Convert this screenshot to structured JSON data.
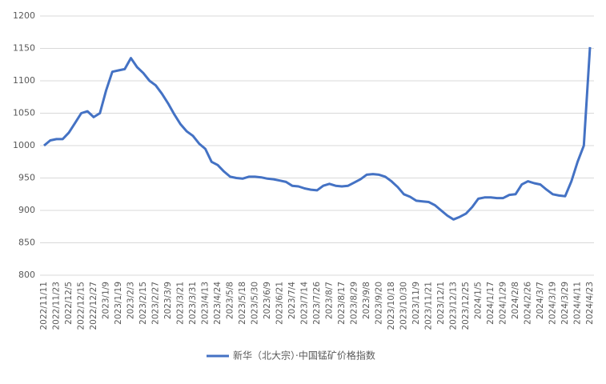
{
  "chart_data": {
    "type": "line",
    "categories": [
      "2022/11/11",
      null,
      "2022/11/23",
      null,
      "2022/12/5",
      null,
      "2022/12/15",
      null,
      "2022/12/27",
      null,
      "2023/1/9",
      null,
      "2023/1/19",
      null,
      "2023/2/3",
      null,
      "2023/2/15",
      null,
      "2023/2/27",
      null,
      "2023/3/9",
      null,
      "2023/3/21",
      null,
      "2023/3/31",
      null,
      "2023/4/13",
      null,
      "2023/4/24",
      null,
      "2023/5/8",
      null,
      "2023/5/18",
      null,
      "2023/5/30",
      null,
      "2023/6/9",
      null,
      "2023/6/21",
      null,
      "2023/7/4",
      null,
      "2023/7/14",
      null,
      "2023/7/26",
      null,
      "2023/8/7",
      null,
      "2023/8/17",
      null,
      "2023/8/29",
      null,
      "2023/9/8",
      null,
      "2023/9/20",
      null,
      "2023/10/18",
      null,
      "2023/10/30",
      null,
      "2023/11/9",
      null,
      "2023/11/21",
      null,
      "2023/12/1",
      null,
      "2023/12/13",
      null,
      "2023/12/25",
      null,
      "2024/1/5",
      null,
      "2024/1/17",
      null,
      "2024/1/29",
      null,
      "2024/2/8",
      null,
      "2024/2/26",
      null,
      "2024/3/7",
      null,
      "2024/3/19",
      null,
      "2024/3/29",
      null,
      "2024/4/11",
      null,
      "2024/4/23"
    ],
    "series": [
      {
        "name": "新华（北大宗）·中国锰矿价格指数",
        "color": "#4472c4",
        "values": [
          1000,
          1008,
          1010,
          1010,
          1020,
          1035,
          1050,
          1053,
          1044,
          1050,
          1085,
          1114,
          1116,
          1118,
          1135,
          1121,
          1112,
          1100,
          1093,
          1080,
          1065,
          1048,
          1033,
          1022,
          1015,
          1003,
          995,
          975,
          970,
          960,
          952,
          950,
          949,
          952,
          952,
          951,
          949,
          948,
          946,
          944,
          938,
          937,
          934,
          932,
          931,
          938,
          941,
          938,
          937,
          938,
          943,
          948,
          955,
          956,
          955,
          952,
          945,
          936,
          925,
          921,
          915,
          914,
          913,
          908,
          900,
          892,
          886,
          890,
          895,
          905,
          918,
          920,
          920,
          919,
          919,
          924,
          925,
          940,
          945,
          942,
          940,
          932,
          925,
          923,
          922,
          945,
          975,
          1000,
          1152
        ]
      }
    ],
    "ylim": [
      800,
      1200
    ],
    "yticks": [
      800,
      850,
      900,
      950,
      1000,
      1050,
      1100,
      1150,
      1200
    ],
    "grid": true,
    "legend": "bottom"
  }
}
